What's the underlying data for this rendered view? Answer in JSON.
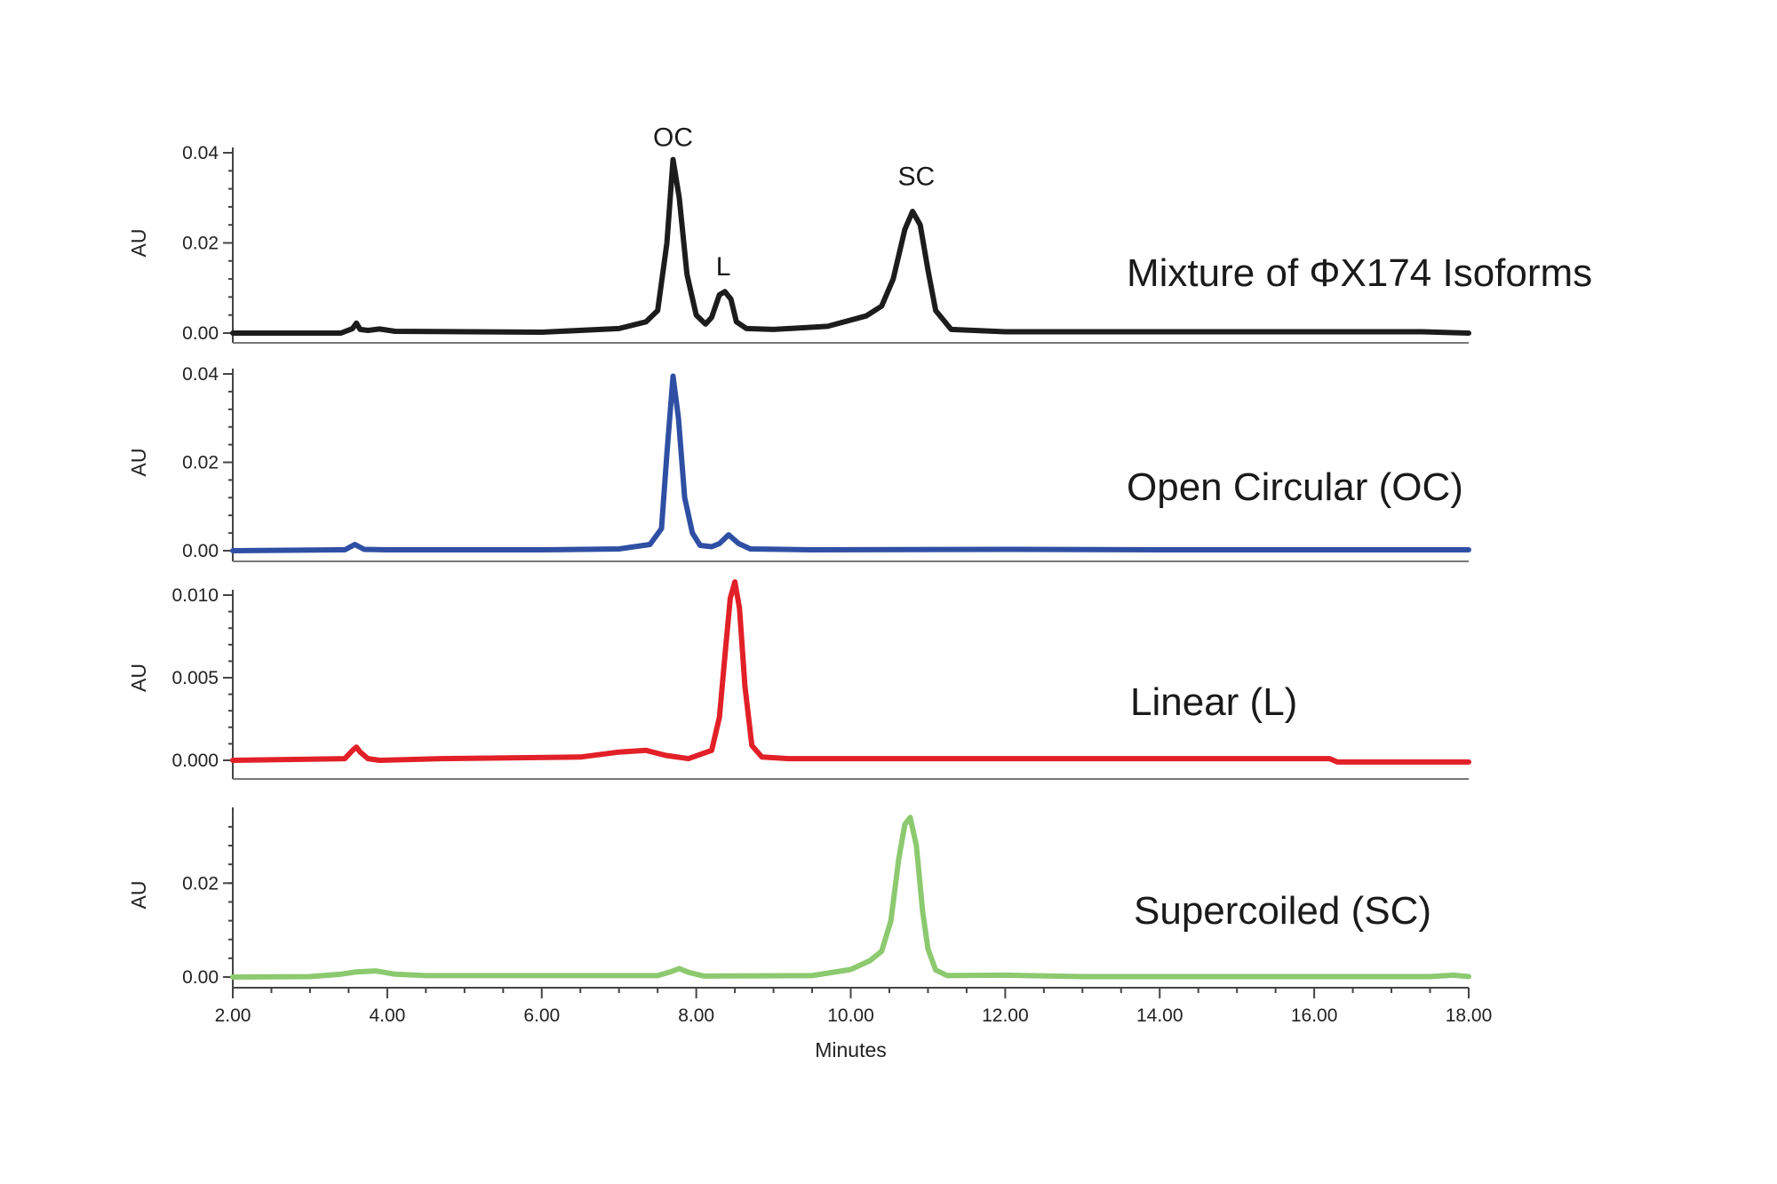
{
  "chart_data": {
    "type": "line",
    "xlabel": "Minutes",
    "xlim": [
      2.0,
      18.0
    ],
    "x_ticks": [
      "2.00",
      "4.00",
      "6.00",
      "8.00",
      "10.00",
      "12.00",
      "14.00",
      "16.00",
      "18.00"
    ],
    "panels": [
      {
        "key": "mix",
        "label": "Mixture of ΦX174 Isoforms",
        "ylabel": "AU",
        "ylim": [
          0,
          0.04
        ],
        "y_ticks": [
          "0.00",
          "0.02",
          "0.04"
        ],
        "color": "#1c1c1c",
        "peak_labels": [
          {
            "text": "OC",
            "x": 7.7,
            "y": 0.0415
          },
          {
            "text": "L",
            "x": 8.35,
            "y": 0.0128
          },
          {
            "text": "SC",
            "x": 10.85,
            "y": 0.0328
          }
        ],
        "series": {
          "name": "",
          "x": [
            2.0,
            3.4,
            3.55,
            3.6,
            3.65,
            3.75,
            3.9,
            4.1,
            6.0,
            7.0,
            7.35,
            7.5,
            7.62,
            7.7,
            7.78,
            7.88,
            8.0,
            8.12,
            8.2,
            8.3,
            8.37,
            8.45,
            8.52,
            8.65,
            9.0,
            9.7,
            10.2,
            10.4,
            10.55,
            10.7,
            10.8,
            10.9,
            11.0,
            11.1,
            11.3,
            12.0,
            17.4,
            18.0
          ],
          "y": [
            0.0,
            0.0,
            0.001,
            0.0022,
            0.0008,
            0.0006,
            0.0009,
            0.0004,
            0.0002,
            0.001,
            0.0025,
            0.005,
            0.02,
            0.0385,
            0.03,
            0.013,
            0.004,
            0.002,
            0.0035,
            0.0085,
            0.0092,
            0.0075,
            0.0025,
            0.001,
            0.0008,
            0.0015,
            0.0038,
            0.006,
            0.012,
            0.023,
            0.027,
            0.024,
            0.014,
            0.005,
            0.0008,
            0.0003,
            0.0003,
            0.0
          ]
        }
      },
      {
        "key": "oc",
        "label": "Open Circular (OC)",
        "ylabel": "AU",
        "ylim": [
          0,
          0.04
        ],
        "y_ticks": [
          "0.00",
          "0.02",
          "0.04"
        ],
        "color": "#2f4fa4",
        "peak_labels": [],
        "series": {
          "name": "",
          "x": [
            2.0,
            3.45,
            3.58,
            3.7,
            4.0,
            6.0,
            7.0,
            7.4,
            7.55,
            7.62,
            7.7,
            7.77,
            7.85,
            7.95,
            8.05,
            8.2,
            8.3,
            8.42,
            8.55,
            8.7,
            9.5,
            12.0,
            14.0,
            16.0,
            18.0
          ],
          "y": [
            0.0,
            0.0002,
            0.0014,
            0.0003,
            0.0002,
            0.0002,
            0.0004,
            0.0014,
            0.005,
            0.022,
            0.0395,
            0.03,
            0.012,
            0.004,
            0.0012,
            0.0009,
            0.0016,
            0.0036,
            0.0016,
            0.0004,
            0.0002,
            0.0003,
            0.0002,
            0.0002,
            0.0002
          ]
        }
      },
      {
        "key": "lin",
        "label": "Linear (L)",
        "ylabel": "AU",
        "ylim": [
          0,
          0.01
        ],
        "y_ticks": [
          "0.000",
          "0.005",
          "0.010"
        ],
        "color": "#e22028",
        "peak_labels": [],
        "series": {
          "name": "",
          "x": [
            2.0,
            3.45,
            3.55,
            3.6,
            3.65,
            3.75,
            3.9,
            4.7,
            6.5,
            7.0,
            7.35,
            7.6,
            7.9,
            8.2,
            8.3,
            8.38,
            8.44,
            8.5,
            8.56,
            8.63,
            8.72,
            8.85,
            9.2,
            12.0,
            16.2,
            16.3,
            18.0
          ],
          "y": [
            0.0,
            0.0001,
            0.0006,
            0.0008,
            0.0005,
            0.0001,
            0.0,
            0.0001,
            0.0002,
            0.0005,
            0.0006,
            0.0003,
            0.0001,
            0.0006,
            0.0026,
            0.0068,
            0.0098,
            0.0108,
            0.0092,
            0.0045,
            0.0009,
            0.0002,
            0.0001,
            0.0001,
            0.0001,
            -0.0001,
            -0.0001
          ]
        }
      },
      {
        "key": "sc",
        "label": "Supercoiled (SC)",
        "ylabel": "AU",
        "ylim": [
          0,
          0.035
        ],
        "y_ticks": [
          "0.00",
          "0.02"
        ],
        "color": "#8cc96f",
        "peak_labels": [],
        "series": {
          "name": "",
          "x": [
            2.0,
            3.0,
            3.4,
            3.6,
            3.85,
            4.1,
            4.5,
            7.5,
            7.68,
            7.78,
            7.9,
            8.1,
            9.5,
            10.0,
            10.25,
            10.4,
            10.52,
            10.62,
            10.7,
            10.77,
            10.85,
            10.93,
            11.0,
            11.1,
            11.25,
            12.0,
            13.0,
            17.5,
            17.8,
            18.0
          ],
          "y": [
            0.0,
            0.0001,
            0.0006,
            0.0011,
            0.0013,
            0.0006,
            0.0003,
            0.0003,
            0.0012,
            0.0018,
            0.001,
            0.0002,
            0.0003,
            0.0016,
            0.0035,
            0.0055,
            0.012,
            0.025,
            0.0325,
            0.034,
            0.028,
            0.014,
            0.006,
            0.0015,
            0.0003,
            0.0004,
            0.0001,
            0.0001,
            0.0004,
            0.0001
          ]
        }
      }
    ]
  }
}
